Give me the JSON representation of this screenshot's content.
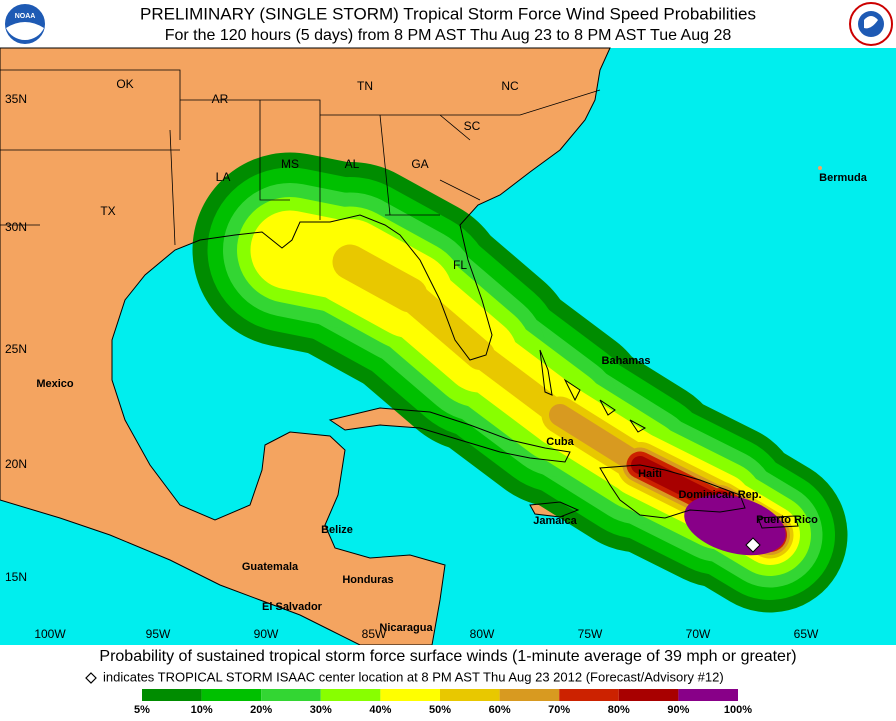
{
  "header": {
    "title": "PRELIMINARY (SINGLE STORM) Tropical Storm Force Wind Speed Probabilities",
    "subtitle": "For the 120 hours (5 days) from 8 PM AST Thu Aug 23 to 8 PM AST Tue Aug 28"
  },
  "map": {
    "region_labels": [
      "OK",
      "AR",
      "TN",
      "NC",
      "SC",
      "LA",
      "MS",
      "AL",
      "GA",
      "TX",
      "FL",
      "Bermuda",
      "Bahamas",
      "Mexico",
      "Cuba",
      "Haiti",
      "Dominican Rep.",
      "Puerto Rico",
      "Jamaica",
      "Belize",
      "Guatemala",
      "Honduras",
      "El Salvador",
      "Nicaragua"
    ],
    "latitude_labels": [
      "35N",
      "30N",
      "25N",
      "20N",
      "15N"
    ],
    "longitude_labels": [
      "100W",
      "95W",
      "90W",
      "85W",
      "80W",
      "75W",
      "70W",
      "65W"
    ]
  },
  "footer": {
    "caption": "Probability of sustained tropical storm force surface winds (1-minute average of 39 mph or greater)",
    "note": "indicates TROPICAL STORM ISAAC center location at 8 PM AST Thu Aug 23 2012 (Forecast/Advisory #12)"
  },
  "legend": {
    "labels": [
      "5%",
      "10%",
      "20%",
      "30%",
      "40%",
      "50%",
      "60%",
      "70%",
      "80%",
      "90%",
      "100%"
    ],
    "colors": [
      "#008c00",
      "#00c000",
      "#33d633",
      "#88ff00",
      "#ffff00",
      "#e8c800",
      "#d89a20",
      "#cc2200",
      "#a80000",
      "#880088"
    ]
  }
}
